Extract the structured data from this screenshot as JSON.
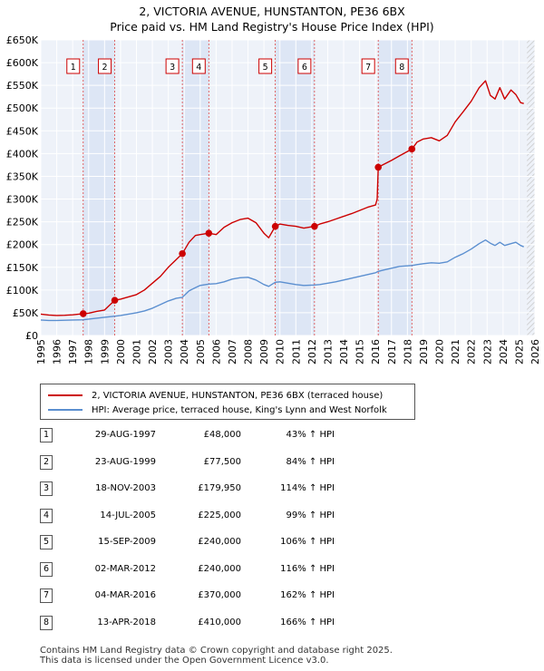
{
  "title_line1": "2, VICTORIA AVENUE, HUNSTANTON, PE36 6BX",
  "title_line2": "Price paid vs. HM Land Registry's House Price Index (HPI)",
  "chart_data": {
    "type": "line",
    "title": "2, VICTORIA AVENUE, HUNSTANTON, PE36 6BX — Price paid vs. HM Land Registry's House Price Index (HPI)",
    "xlabel": "",
    "ylabel": "",
    "xlim": [
      1995,
      2026
    ],
    "ylim": [
      0,
      650000
    ],
    "grid": true,
    "x_ticks": [
      1995,
      1996,
      1997,
      1998,
      1999,
      2000,
      2001,
      2002,
      2003,
      2004,
      2005,
      2006,
      2007,
      2008,
      2009,
      2010,
      2011,
      2012,
      2013,
      2014,
      2015,
      2016,
      2017,
      2018,
      2019,
      2020,
      2021,
      2022,
      2023,
      2024,
      2025,
      2026
    ],
    "y_ticks": [
      {
        "value": 0,
        "label": "£0"
      },
      {
        "value": 50000,
        "label": "£50K"
      },
      {
        "value": 100000,
        "label": "£100K"
      },
      {
        "value": 150000,
        "label": "£150K"
      },
      {
        "value": 200000,
        "label": "£200K"
      },
      {
        "value": 250000,
        "label": "£250K"
      },
      {
        "value": 300000,
        "label": "£300K"
      },
      {
        "value": 350000,
        "label": "£350K"
      },
      {
        "value": 400000,
        "label": "£400K"
      },
      {
        "value": 450000,
        "label": "£450K"
      },
      {
        "value": 500000,
        "label": "£500K"
      },
      {
        "value": 550000,
        "label": "£550K"
      },
      {
        "value": 600000,
        "label": "£600K"
      },
      {
        "value": 650000,
        "label": "£650K"
      }
    ],
    "series": [
      {
        "name": "2, VICTORIA AVENUE, HUNSTANTON, PE36 6BX (terraced house)",
        "color": "#cc0000",
        "points": [
          [
            1995.0,
            47000
          ],
          [
            1995.5,
            45000
          ],
          [
            1996.0,
            44000
          ],
          [
            1996.5,
            44500
          ],
          [
            1997.0,
            45500
          ],
          [
            1997.66,
            48000
          ],
          [
            1998.0,
            49000
          ],
          [
            1998.5,
            53000
          ],
          [
            1999.0,
            56000
          ],
          [
            1999.64,
            77500
          ],
          [
            2000.0,
            80000
          ],
          [
            2000.5,
            85000
          ],
          [
            2001.0,
            90000
          ],
          [
            2001.5,
            100000
          ],
          [
            2002.0,
            115000
          ],
          [
            2002.5,
            130000
          ],
          [
            2003.0,
            150000
          ],
          [
            2003.88,
            179950
          ],
          [
            2004.3,
            205000
          ],
          [
            2004.7,
            220000
          ],
          [
            2005.0,
            222000
          ],
          [
            2005.54,
            225000
          ],
          [
            2006.0,
            222000
          ],
          [
            2006.5,
            238000
          ],
          [
            2007.0,
            248000
          ],
          [
            2007.5,
            255000
          ],
          [
            2008.0,
            258000
          ],
          [
            2008.5,
            248000
          ],
          [
            2009.0,
            225000
          ],
          [
            2009.3,
            215000
          ],
          [
            2009.71,
            240000
          ],
          [
            2010.0,
            245000
          ],
          [
            2010.5,
            242000
          ],
          [
            2011.0,
            240000
          ],
          [
            2011.5,
            236000
          ],
          [
            2012.17,
            240000
          ],
          [
            2012.5,
            245000
          ],
          [
            2013.0,
            250000
          ],
          [
            2013.5,
            256000
          ],
          [
            2014.0,
            262000
          ],
          [
            2014.5,
            268000
          ],
          [
            2015.0,
            275000
          ],
          [
            2015.5,
            282000
          ],
          [
            2016.0,
            287000
          ],
          [
            2016.1,
            300000
          ],
          [
            2016.17,
            370000
          ],
          [
            2016.5,
            376000
          ],
          [
            2017.0,
            385000
          ],
          [
            2017.5,
            395000
          ],
          [
            2018.28,
            410000
          ],
          [
            2018.6,
            425000
          ],
          [
            2019.0,
            432000
          ],
          [
            2019.5,
            435000
          ],
          [
            2020.0,
            428000
          ],
          [
            2020.5,
            440000
          ],
          [
            2021.0,
            470000
          ],
          [
            2021.5,
            492000
          ],
          [
            2022.0,
            515000
          ],
          [
            2022.5,
            545000
          ],
          [
            2022.9,
            560000
          ],
          [
            2023.2,
            528000
          ],
          [
            2023.5,
            520000
          ],
          [
            2023.8,
            545000
          ],
          [
            2024.1,
            520000
          ],
          [
            2024.5,
            540000
          ],
          [
            2024.8,
            530000
          ],
          [
            2025.1,
            512000
          ],
          [
            2025.3,
            510000
          ]
        ]
      },
      {
        "name": "HPI: Average price, terraced house, King's Lynn and West Norfolk",
        "color": "#5b8fd0",
        "points": [
          [
            1995.0,
            34000
          ],
          [
            1995.5,
            33000
          ],
          [
            1996.0,
            33000
          ],
          [
            1996.5,
            33500
          ],
          [
            1997.0,
            34000
          ],
          [
            1997.66,
            34500
          ],
          [
            1998.0,
            36000
          ],
          [
            1998.5,
            38000
          ],
          [
            1999.0,
            40000
          ],
          [
            1999.64,
            42500
          ],
          [
            2000.0,
            44000
          ],
          [
            2000.5,
            47000
          ],
          [
            2001.0,
            50000
          ],
          [
            2001.5,
            54000
          ],
          [
            2002.0,
            60000
          ],
          [
            2002.5,
            68000
          ],
          [
            2003.0,
            76000
          ],
          [
            2003.5,
            82000
          ],
          [
            2003.88,
            84000
          ],
          [
            2004.3,
            98000
          ],
          [
            2004.7,
            105000
          ],
          [
            2005.0,
            110000
          ],
          [
            2005.54,
            113000
          ],
          [
            2006.0,
            114000
          ],
          [
            2006.5,
            118000
          ],
          [
            2007.0,
            124000
          ],
          [
            2007.5,
            127000
          ],
          [
            2008.0,
            128000
          ],
          [
            2008.5,
            122000
          ],
          [
            2009.0,
            112000
          ],
          [
            2009.3,
            108000
          ],
          [
            2009.71,
            117000
          ],
          [
            2010.0,
            118000
          ],
          [
            2010.5,
            115000
          ],
          [
            2011.0,
            112000
          ],
          [
            2011.5,
            110000
          ],
          [
            2012.17,
            111000
          ],
          [
            2012.5,
            112000
          ],
          [
            2013.0,
            115000
          ],
          [
            2013.5,
            118000
          ],
          [
            2014.0,
            122000
          ],
          [
            2014.5,
            126000
          ],
          [
            2015.0,
            130000
          ],
          [
            2015.5,
            134000
          ],
          [
            2016.0,
            138000
          ],
          [
            2016.17,
            141000
          ],
          [
            2016.5,
            144000
          ],
          [
            2017.0,
            148000
          ],
          [
            2017.5,
            152000
          ],
          [
            2018.28,
            154000
          ],
          [
            2018.6,
            156000
          ],
          [
            2019.0,
            158000
          ],
          [
            2019.5,
            160000
          ],
          [
            2020.0,
            159000
          ],
          [
            2020.5,
            162000
          ],
          [
            2021.0,
            172000
          ],
          [
            2021.5,
            180000
          ],
          [
            2022.0,
            190000
          ],
          [
            2022.5,
            202000
          ],
          [
            2022.9,
            210000
          ],
          [
            2023.2,
            203000
          ],
          [
            2023.5,
            198000
          ],
          [
            2023.8,
            205000
          ],
          [
            2024.1,
            198000
          ],
          [
            2024.5,
            202000
          ],
          [
            2024.8,
            205000
          ],
          [
            2025.1,
            198000
          ],
          [
            2025.3,
            195000
          ]
        ]
      }
    ],
    "sales": [
      {
        "num": "1",
        "x": 1997.66,
        "value": 48000
      },
      {
        "num": "2",
        "x": 1999.64,
        "value": 77500
      },
      {
        "num": "3",
        "x": 2003.88,
        "value": 179950
      },
      {
        "num": "4",
        "x": 2005.54,
        "value": 225000
      },
      {
        "num": "5",
        "x": 2009.71,
        "value": 240000
      },
      {
        "num": "6",
        "x": 2012.17,
        "value": 240000
      },
      {
        "num": "7",
        "x": 2016.17,
        "value": 370000
      },
      {
        "num": "8",
        "x": 2018.28,
        "value": 410000
      }
    ],
    "shaded_ranges": [
      [
        1997.66,
        1999.64
      ],
      [
        2003.88,
        2005.54
      ],
      [
        2009.71,
        2012.17
      ],
      [
        2016.17,
        2018.28
      ]
    ],
    "forecast_start": 2025.5
  },
  "legend": {
    "property_label": "2, VICTORIA AVENUE, HUNSTANTON, PE36 6BX (terraced house)",
    "hpi_label": "HPI: Average price, terraced house, King's Lynn and West Norfolk",
    "property_color": "#cc0000",
    "hpi_color": "#5b8fd0"
  },
  "sales_table": [
    {
      "num": "1",
      "date": "29-AUG-1997",
      "price": "£48,000",
      "hpi": "43% ↑ HPI"
    },
    {
      "num": "2",
      "date": "23-AUG-1999",
      "price": "£77,500",
      "hpi": "84% ↑ HPI"
    },
    {
      "num": "3",
      "date": "18-NOV-2003",
      "price": "£179,950",
      "hpi": "114% ↑ HPI"
    },
    {
      "num": "4",
      "date": "14-JUL-2005",
      "price": "£225,000",
      "hpi": "99% ↑ HPI"
    },
    {
      "num": "5",
      "date": "15-SEP-2009",
      "price": "£240,000",
      "hpi": "106% ↑ HPI"
    },
    {
      "num": "6",
      "date": "02-MAR-2012",
      "price": "£240,000",
      "hpi": "116% ↑ HPI"
    },
    {
      "num": "7",
      "date": "04-MAR-2016",
      "price": "£370,000",
      "hpi": "162% ↑ HPI"
    },
    {
      "num": "8",
      "date": "13-APR-2018",
      "price": "£410,000",
      "hpi": "166% ↑ HPI"
    }
  ],
  "footer_line1": "Contains HM Land Registry data © Crown copyright and database right 2025.",
  "footer_line2": "This data is licensed under the Open Government Licence v3.0."
}
